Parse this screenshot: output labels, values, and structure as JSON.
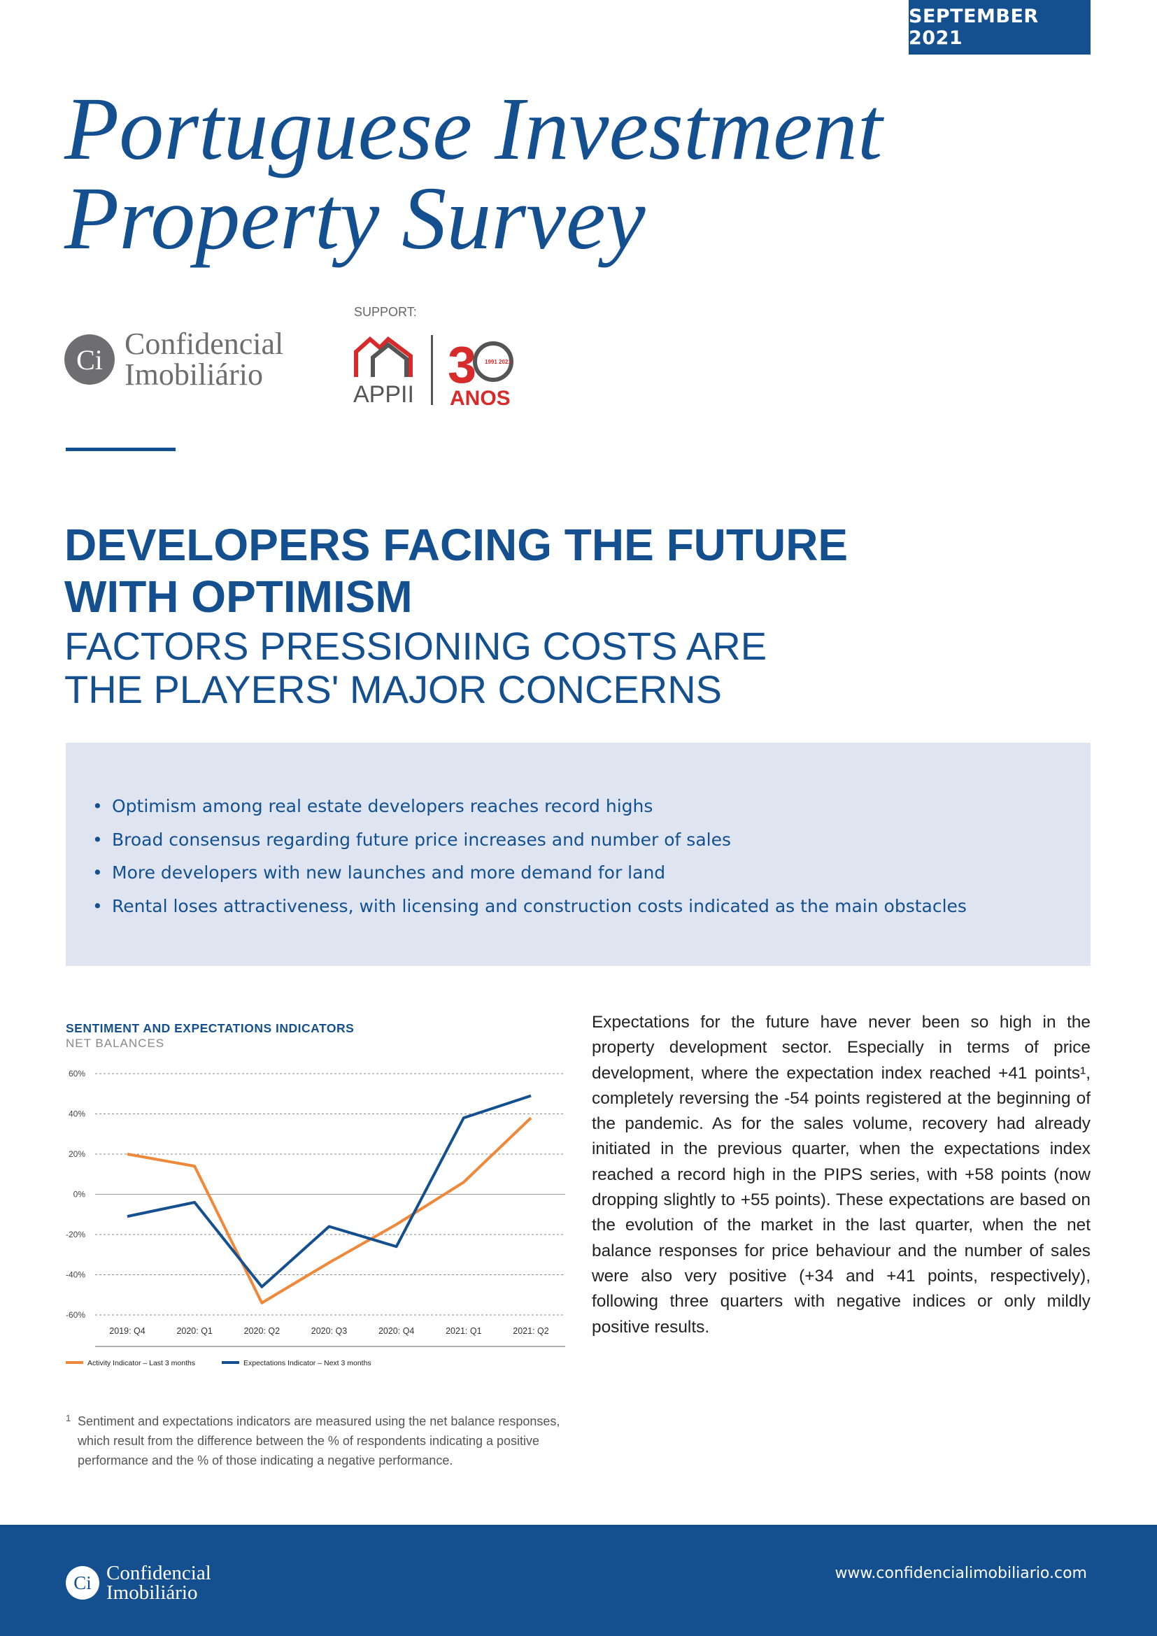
{
  "header": {
    "date": "SEPTEMBER 2021"
  },
  "title": {
    "line1": "Portuguese Investment",
    "line2": "Property Survey"
  },
  "logos": {
    "ci_line1": "Confidencial",
    "ci_line2": "Imobiliário",
    "ci_monogram": "Ci",
    "support_label": "SUPPORT:",
    "appii_name": "APPII",
    "anniversary_years": "1991 2021",
    "anniversary_label": "ANOS"
  },
  "headline": {
    "line1": "DEVELOPERS FACING THE FUTURE",
    "line2": "WITH OPTIMISM",
    "sub_line1": "FACTORS PRESSIONING COSTS ARE",
    "sub_line2": "THE PLAYERS' MAJOR CONCERNS"
  },
  "highlights": [
    "Optimism among real estate developers reaches record highs",
    "Broad consensus regarding future price increases and number of sales",
    "More developers with new launches and more demand for land",
    "Rental loses attractiveness, with licensing and construction costs indicated as the main obstacles"
  ],
  "chart_data": {
    "type": "line",
    "title": "SENTIMENT AND EXPECTATIONS INDICATORS",
    "subtitle": "NET BALANCES",
    "categories": [
      "2019: Q4",
      "2020: Q1",
      "2020: Q2",
      "2020: Q3",
      "2020: Q4",
      "2021: Q1",
      "2021: Q2"
    ],
    "y_ticks": [
      "60%",
      "40%",
      "20%",
      "0%",
      "-20%",
      "-40%",
      "-60%"
    ],
    "ylim": [
      -60,
      60
    ],
    "grid": "dotted horizontal",
    "legend_position": "bottom",
    "series": [
      {
        "name": "Activity Indicator – Last 3 months",
        "color": "#f0883a",
        "values": [
          20,
          14,
          -54,
          -34,
          -15,
          6,
          38
        ]
      },
      {
        "name": "Expectations Indicator – Next 3 months",
        "color": "#14508f",
        "values": [
          -11,
          -4,
          -46,
          -16,
          -26,
          38,
          49
        ]
      }
    ]
  },
  "body_text": "Expectations for the future have never been so high in the property development sector. Especially in terms of price development, where the expectation index reached +41 points¹, completely reversing the -54 points registered at the beginning of the pandemic. As for the sales volume, recovery had already initiated in the previous quarter, when the expectations index reached a record high in the PIPS series, with +58 points (now dropping slightly to +55 points). These expectations are based on the evolution of the market in the last quarter, when the net balance responses for price behaviour and the number of sales were also very positive (+34 and +41 points, respectively), following three quarters with negative indices or only mildly positive results.",
  "footnote": {
    "mark": "1",
    "text": "Sentiment and expectations indicators are measured using the net balance responses, which result from the difference between the % of respondents indicating a positive performance and the % of those indicating a negative performance."
  },
  "footer": {
    "ci_line1": "Confidencial",
    "ci_line2": "Imobiliário",
    "ci_monogram": "Ci",
    "url": "www.confidencialimobiliario.com"
  }
}
